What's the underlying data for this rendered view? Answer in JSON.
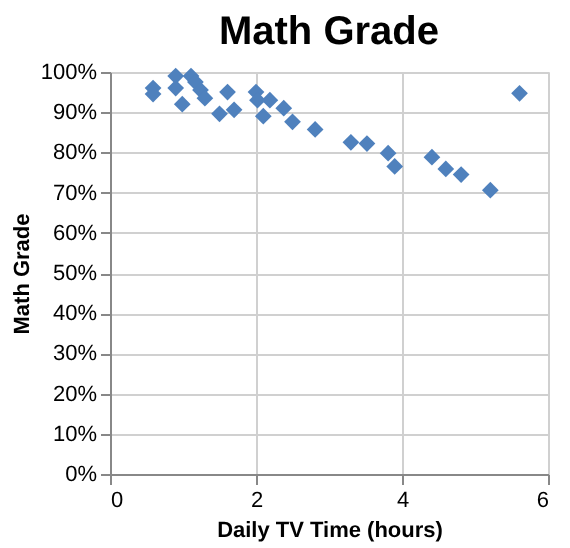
{
  "chart_data": {
    "type": "scatter",
    "title": "Math Grade",
    "xlabel": "Daily TV Time (hours)",
    "ylabel": "Math Grade",
    "x": [
      0.59,
      0.59,
      0.9,
      0.9,
      0.99,
      1.11,
      1.17,
      1.24,
      1.3,
      1.5,
      1.61,
      1.7,
      2.0,
      2.02,
      2.1,
      2.19,
      2.38,
      2.5,
      2.81,
      3.3,
      3.52,
      3.81,
      3.9,
      4.41,
      4.6,
      4.81,
      5.21,
      5.61
    ],
    "values": [
      96,
      94.5,
      99,
      96,
      92,
      99,
      97.5,
      95.5,
      93.5,
      89.6,
      95,
      90.6,
      95,
      93,
      89,
      93,
      91,
      87.6,
      85.7,
      82.5,
      82.2,
      79.8,
      76.5,
      78.8,
      75.9,
      74.5,
      70.6,
      94.7
    ],
    "color": "#4f81bd",
    "marker": "diamond",
    "grid": true,
    "xlim": [
      0,
      6
    ],
    "xticks": [
      0,
      2,
      4,
      6
    ],
    "ylim": [
      0,
      100
    ],
    "yticks": [
      {
        "value": 0,
        "label": "0%"
      },
      {
        "value": 10,
        "label": "10%"
      },
      {
        "value": 20,
        "label": "20%"
      },
      {
        "value": 30,
        "label": "30%"
      },
      {
        "value": 40,
        "label": "40%"
      },
      {
        "value": 50,
        "label": "50%"
      },
      {
        "value": 60,
        "label": "60%"
      },
      {
        "value": 70,
        "label": "70%"
      },
      {
        "value": 80,
        "label": "80%"
      },
      {
        "value": 90,
        "label": "90%"
      },
      {
        "value": 100,
        "label": "100%"
      }
    ]
  }
}
